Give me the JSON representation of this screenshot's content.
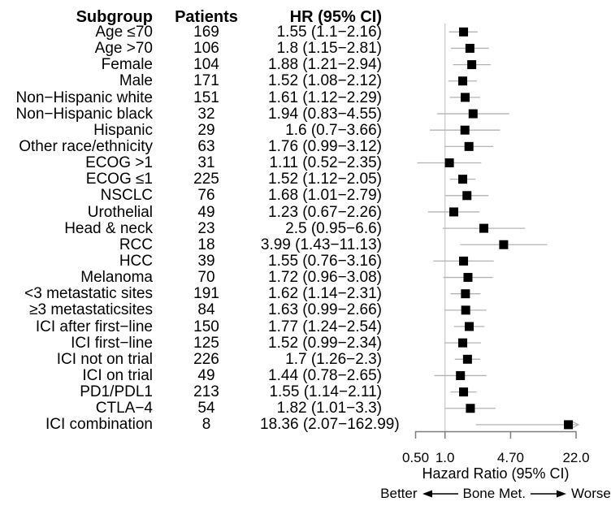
{
  "table": {
    "headers": {
      "subgroup": "Subgroup",
      "patients": "Patients",
      "hr": "HR (95% CI)"
    }
  },
  "chart_data": {
    "type": "scatter",
    "variant": "forest-plot",
    "x_scale": "log",
    "xlim": [
      0.5,
      22
    ],
    "tick_values": [
      0.5,
      1.0,
      4.7,
      22.0
    ],
    "tick_labels": [
      "0.50",
      "1.0",
      "4.70",
      "22.0"
    ],
    "xlabel": "Hazard Ratio (95% CI)",
    "reference_line": 1.0,
    "marker_color": "#000000",
    "ci_line_color": "#b3b3b3",
    "reference_line_color": "#cccccc",
    "axis_color": "#7d7d7d",
    "rows": [
      {
        "subgroup": "Age ≤70",
        "patients": 169,
        "hr_text": "1.55 (1.1−2.16)",
        "hr": 1.55,
        "lo": 1.1,
        "hi": 2.16
      },
      {
        "subgroup": "Age >70",
        "patients": 106,
        "hr_text": "1.8 (1.15−2.81)",
        "hr": 1.8,
        "lo": 1.15,
        "hi": 2.81
      },
      {
        "subgroup": "Female",
        "patients": 104,
        "hr_text": "1.88 (1.21−2.94)",
        "hr": 1.88,
        "lo": 1.21,
        "hi": 2.94
      },
      {
        "subgroup": "Male",
        "patients": 171,
        "hr_text": "1.52 (1.08−2.12)",
        "hr": 1.52,
        "lo": 1.08,
        "hi": 2.12
      },
      {
        "subgroup": "Non−Hispanic white",
        "patients": 151,
        "hr_text": "1.61 (1.12−2.29)",
        "hr": 1.61,
        "lo": 1.12,
        "hi": 2.29
      },
      {
        "subgroup": "Non−Hispanic black",
        "patients": 32,
        "hr_text": "1.94 (0.83−4.55)",
        "hr": 1.94,
        "lo": 0.83,
        "hi": 4.55
      },
      {
        "subgroup": "Hispanic",
        "patients": 29,
        "hr_text": "1.6 (0.7−3.66)",
        "hr": 1.6,
        "lo": 0.7,
        "hi": 3.66
      },
      {
        "subgroup": "Other race/ethnicity",
        "patients": 63,
        "hr_text": "1.76 (0.99−3.12)",
        "hr": 1.76,
        "lo": 0.99,
        "hi": 3.12
      },
      {
        "subgroup": "ECOG >1",
        "patients": 31,
        "hr_text": "1.11 (0.52−2.35)",
        "hr": 1.11,
        "lo": 0.52,
        "hi": 2.35
      },
      {
        "subgroup": "ECOG ≤1",
        "patients": 225,
        "hr_text": "1.52 (1.12−2.05)",
        "hr": 1.52,
        "lo": 1.12,
        "hi": 2.05
      },
      {
        "subgroup": "NSCLC",
        "patients": 76,
        "hr_text": "1.68 (1.01−2.79)",
        "hr": 1.68,
        "lo": 1.01,
        "hi": 2.79
      },
      {
        "subgroup": "Urothelial",
        "patients": 49,
        "hr_text": "1.23 (0.67−2.26)",
        "hr": 1.23,
        "lo": 0.67,
        "hi": 2.26
      },
      {
        "subgroup": "Head & neck",
        "patients": 23,
        "hr_text": "2.5 (0.95−6.6)",
        "hr": 2.5,
        "lo": 0.95,
        "hi": 6.6
      },
      {
        "subgroup": "RCC",
        "patients": 18,
        "hr_text": "3.99 (1.43−11.13)",
        "hr": 3.99,
        "lo": 1.43,
        "hi": 11.13
      },
      {
        "subgroup": "HCC",
        "patients": 39,
        "hr_text": "1.55 (0.76−3.16)",
        "hr": 1.55,
        "lo": 0.76,
        "hi": 3.16
      },
      {
        "subgroup": "Melanoma",
        "patients": 70,
        "hr_text": "1.72 (0.96−3.08)",
        "hr": 1.72,
        "lo": 0.96,
        "hi": 3.08
      },
      {
        "subgroup": "<3 metastatic sites",
        "patients": 191,
        "hr_text": "1.62 (1.14−2.31)",
        "hr": 1.62,
        "lo": 1.14,
        "hi": 2.31
      },
      {
        "subgroup": "≥3 metastaticsites",
        "patients": 84,
        "hr_text": "1.63 (0.99−2.66)",
        "hr": 1.63,
        "lo": 0.99,
        "hi": 2.66
      },
      {
        "subgroup": "ICI after first−line",
        "patients": 150,
        "hr_text": "1.77 (1.24−2.54)",
        "hr": 1.77,
        "lo": 1.24,
        "hi": 2.54
      },
      {
        "subgroup": "ICI first−line",
        "patients": 125,
        "hr_text": "1.52 (0.99−2.34)",
        "hr": 1.52,
        "lo": 0.99,
        "hi": 2.34
      },
      {
        "subgroup": "ICI not on trial",
        "patients": 226,
        "hr_text": "1.7 (1.26−2.3)",
        "hr": 1.7,
        "lo": 1.26,
        "hi": 2.3
      },
      {
        "subgroup": "ICI on trial",
        "patients": 49,
        "hr_text": "1.44 (0.78−2.65)",
        "hr": 1.44,
        "lo": 0.78,
        "hi": 2.65
      },
      {
        "subgroup": "PD1/PDL1",
        "patients": 213,
        "hr_text": "1.55 (1.14−2.11)",
        "hr": 1.55,
        "lo": 1.14,
        "hi": 2.11
      },
      {
        "subgroup": "CTLA−4",
        "patients": 54,
        "hr_text": "1.82 (1.01−3.3)",
        "hr": 1.82,
        "lo": 1.01,
        "hi": 3.3
      },
      {
        "subgroup": "ICI combination",
        "patients": 8,
        "hr_text": "18.36 (2.07−162.99)",
        "hr": 18.36,
        "lo": 2.07,
        "hi": 162.99
      }
    ],
    "direction_legend": {
      "left": "Better",
      "center": "Bone Met.",
      "right": "Worse"
    }
  }
}
